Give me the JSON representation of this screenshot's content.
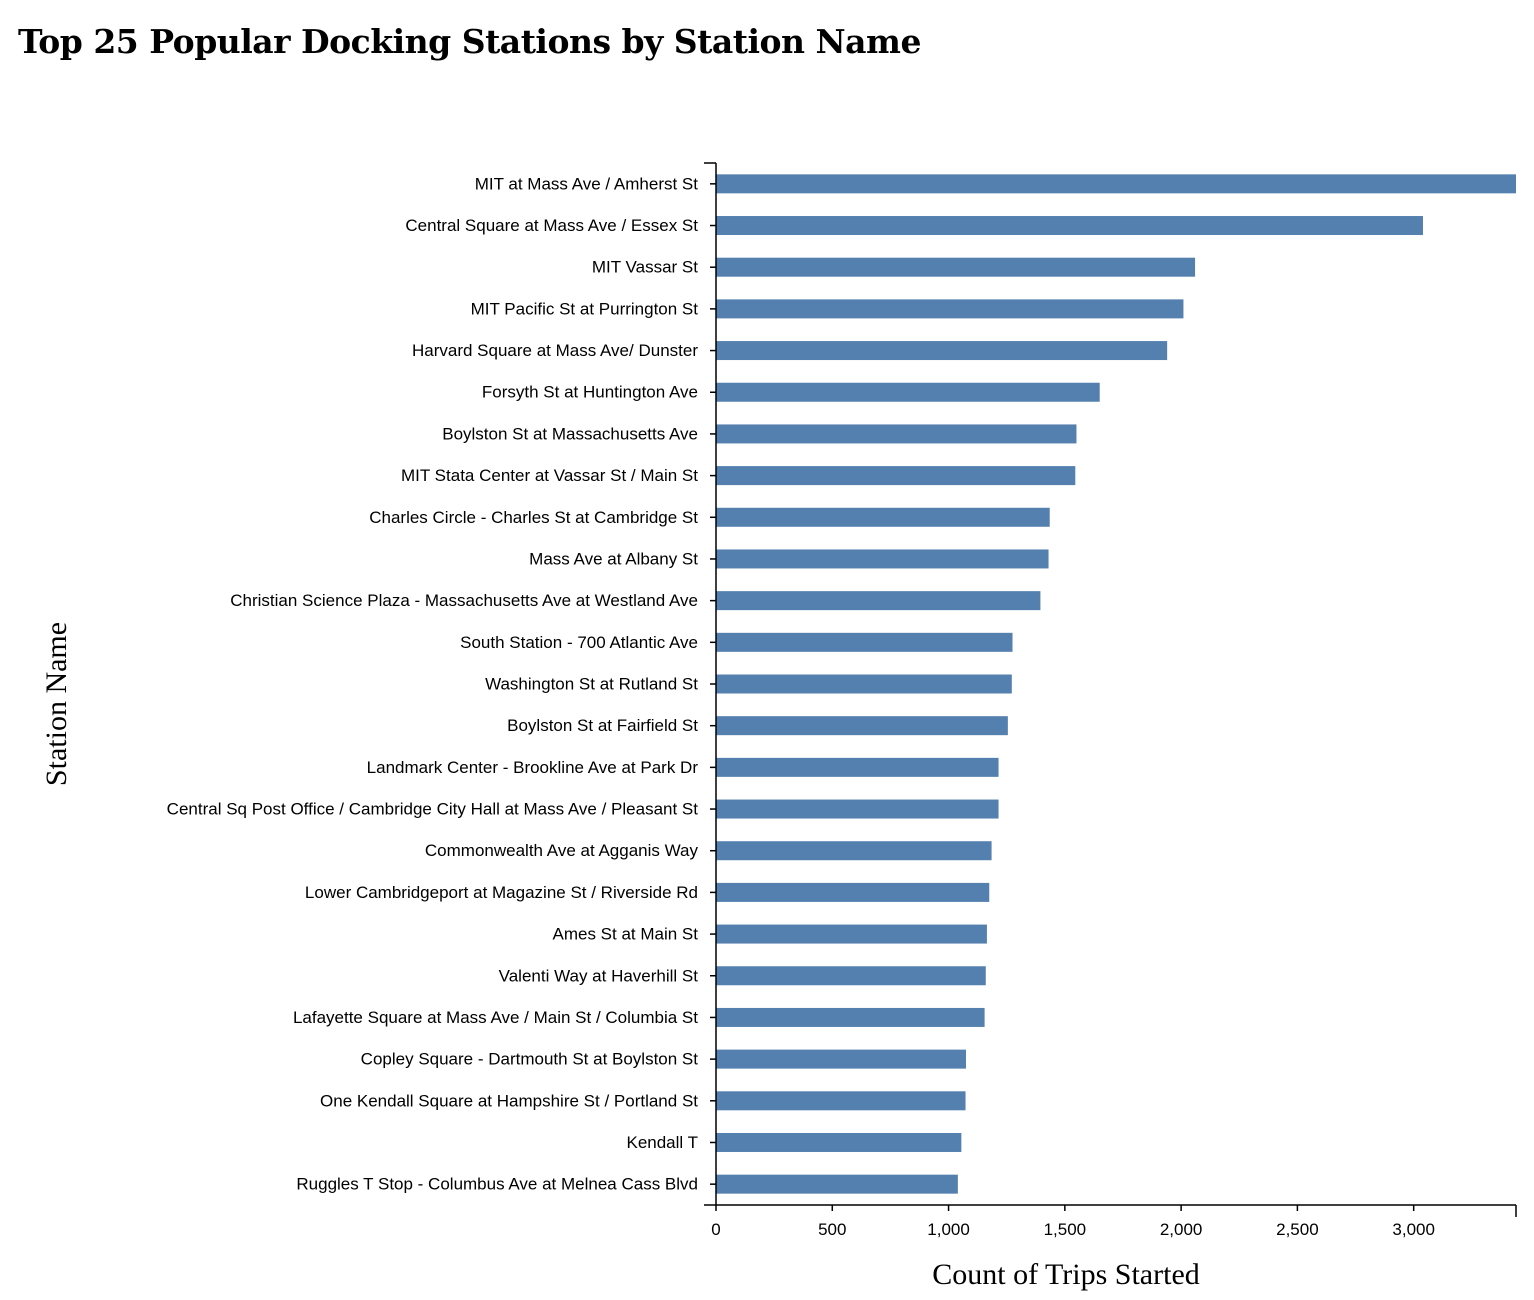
{
  "chart_data": {
    "type": "bar",
    "orientation": "horizontal",
    "title": "Top 25 Popular Docking Stations by Station Name",
    "xlabel": "Count of Trips Started",
    "ylabel": "Station Name",
    "xlim": [
      0,
      3440
    ],
    "x_ticks": [
      0,
      500,
      1000,
      1500,
      2000,
      2500,
      3000
    ],
    "x_tick_labels": [
      "0",
      "500",
      "1,000",
      "1,500",
      "2,000",
      "2,500",
      "3,000"
    ],
    "bar_color": "#5480b0",
    "grid": false,
    "categories": [
      "MIT at Mass Ave / Amherst St",
      "Central Square at Mass Ave / Essex St",
      "MIT Vassar St",
      "MIT Pacific St at Purrington St",
      "Harvard Square at Mass Ave/ Dunster",
      "Forsyth St at Huntington Ave",
      "Boylston St at Massachusetts Ave",
      "MIT Stata Center at Vassar St / Main St",
      "Charles Circle - Charles St at Cambridge St",
      "Mass Ave at Albany St",
      "Christian Science Plaza - Massachusetts Ave at Westland Ave",
      "South Station - 700 Atlantic Ave",
      "Washington St at Rutland St",
      "Boylston St at Fairfield St",
      "Landmark Center - Brookline Ave at Park Dr",
      "Central Sq Post Office / Cambridge City Hall at Mass Ave / Pleasant St",
      "Commonwealth Ave at Agganis Way",
      "Lower Cambridgeport at Magazine St / Riverside Rd",
      "Ames St at Main St",
      "Valenti Way at Haverhill St",
      "Lafayette Square at Mass Ave / Main St / Columbia St",
      "Copley Square - Dartmouth St at Boylston St",
      "One Kendall Square at Hampshire St / Portland St",
      "Kendall T",
      "Ruggles T Stop - Columbus Ave at Melnea Cass Blvd"
    ],
    "values": [
      3440,
      3040,
      2060,
      2010,
      1940,
      1650,
      1550,
      1545,
      1435,
      1430,
      1395,
      1275,
      1272,
      1255,
      1215,
      1215,
      1185,
      1175,
      1165,
      1160,
      1155,
      1075,
      1073,
      1055,
      1040
    ]
  }
}
